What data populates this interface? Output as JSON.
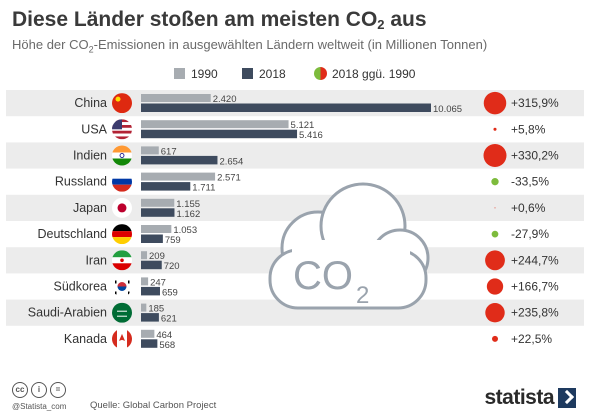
{
  "title_main": "Diese Länder stoßen am meisten CO",
  "title_sub": "2",
  "title_end": " aus",
  "subtitle_pre": "Höhe der CO",
  "subtitle_sub": "2",
  "subtitle_post": "-Emissionen in ausgewählten Ländern weltweit (in Millionen Tonnen)",
  "colors": {
    "bar_1990": "#a7acb1",
    "bar_2018": "#3e4b5e",
    "increase": "#e02c19",
    "decrease": "#7dbb3c",
    "row_band": "#ececec",
    "cloud": "#9aa3ad"
  },
  "decoration": {
    "cloud_text": "CO",
    "cloud_sub": "2",
    "icon": "co2-cloud-icon"
  },
  "chart_data": {
    "type": "bar",
    "orientation": "horizontal",
    "categories": [
      "China",
      "USA",
      "Indien",
      "Russland",
      "Japan",
      "Deutschland",
      "Iran",
      "Südkorea",
      "Saudi-Arabien",
      "Kanada"
    ],
    "series": [
      {
        "name": "1990",
        "values": [
          2420,
          5121,
          617,
          2571,
          1155,
          1053,
          209,
          247,
          185,
          464
        ],
        "labels": [
          "2.420",
          "5.121",
          "617",
          "2.571",
          "1.155",
          "1.053",
          "209",
          "247",
          "185",
          "464"
        ]
      },
      {
        "name": "2018",
        "values": [
          10065,
          5416,
          2654,
          1711,
          1162,
          759,
          720,
          659,
          621,
          568
        ],
        "labels": [
          "10.065",
          "5.416",
          "2.654",
          "1.711",
          "1.162",
          "759",
          "720",
          "659",
          "621",
          "568"
        ]
      }
    ],
    "change": {
      "name": "2018 ggü. 1990",
      "values": [
        315.9,
        5.8,
        330.2,
        -33.5,
        0.6,
        -27.9,
        244.7,
        166.7,
        235.8,
        22.5
      ],
      "labels": [
        "+315,9%",
        "+5,8%",
        "+330,2%",
        "-33,5%",
        "+0,6%",
        "-27,9%",
        "+244,7%",
        "+166,7%",
        "+235,8%",
        "+22,5%"
      ]
    },
    "flags": [
      "china-flag-icon",
      "usa-flag-icon",
      "india-flag-icon",
      "russia-flag-icon",
      "japan-flag-icon",
      "germany-flag-icon",
      "iran-flag-icon",
      "south-korea-flag-icon",
      "saudi-arabia-flag-icon",
      "canada-flag-icon"
    ],
    "legend_position": "top",
    "xlim": [
      0,
      10065
    ],
    "grid": false
  },
  "footer": {
    "credit": "@Statista_com",
    "source": "Quelle: Global Carbon Project",
    "brand": "statista",
    "license_icons": [
      "cc-icon",
      "by-icon",
      "equals-icon"
    ]
  }
}
